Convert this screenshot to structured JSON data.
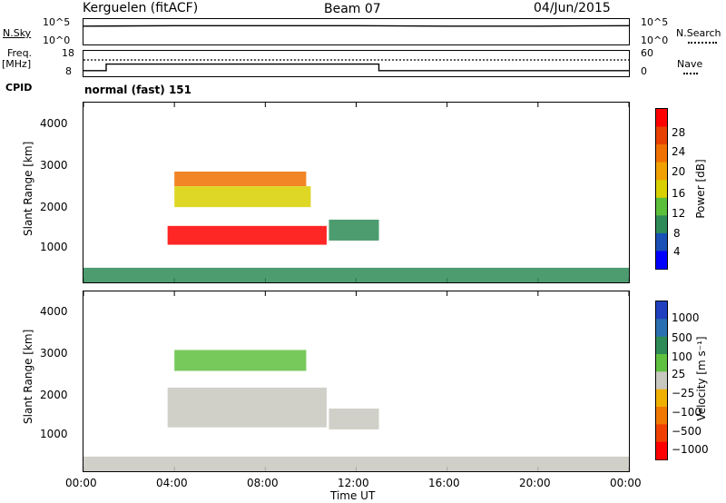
{
  "header": {
    "station": "Kerguelen (fitACF)",
    "beam": "Beam 07",
    "date": "04/Jun/2015"
  },
  "nsky_panel": {
    "left_label": "N.Sky",
    "left_ticks": [
      "10^5",
      "10^0"
    ],
    "right_ticks": [
      "10^5",
      "10^0"
    ],
    "right_label": "N.Search"
  },
  "freq_panel": {
    "left_label_top": "Freq.",
    "left_label_unit": "[MHz]",
    "left_ticks": [
      "18",
      "8"
    ],
    "right_ticks": [
      "60",
      "0"
    ],
    "right_label": "Nave"
  },
  "cpid": {
    "label": "CPID",
    "value": "normal (fast) 151"
  },
  "power_panel": {
    "ylabel": "Slant Range [km]",
    "yticks": [
      "4000",
      "3000",
      "2000",
      "1000"
    ],
    "colorbar_label": "Power [dB]",
    "colorbar_ticks": [
      "28",
      "24",
      "20",
      "16",
      "12",
      "8",
      "4"
    ],
    "colors": [
      "#0000ff",
      "#1a4fb5",
      "#2e8b57",
      "#5bbf3a",
      "#d8d000",
      "#f0a000",
      "#f07000",
      "#e84000",
      "#ff0000"
    ]
  },
  "velocity_panel": {
    "ylabel": "Slant Range [km]",
    "yticks": [
      "4000",
      "3000",
      "2000",
      "1000"
    ],
    "colorbar_label": "Velocity [m s⁻¹]",
    "colorbar_ticks": [
      "1000",
      "500",
      "100",
      "25",
      "−25",
      "−100",
      "−500",
      "−1000"
    ],
    "colors": [
      "#2040c0",
      "#2a70b0",
      "#2e8b57",
      "#60c040",
      "#c8c8c0",
      "#f0b000",
      "#f07800",
      "#f04000",
      "#ff0000"
    ]
  },
  "xaxis": {
    "ticks": [
      "00:00",
      "04:00",
      "08:00",
      "12:00",
      "16:00",
      "20:00",
      "00:00"
    ],
    "label": "Time UT"
  },
  "chart_data": [
    {
      "type": "line",
      "title": "N.Sky",
      "x_unit": "hours UT",
      "x": [
        0,
        4,
        8,
        12,
        16,
        20,
        24
      ],
      "series": [
        {
          "values": [
            3.6,
            3.7,
            3.7,
            3.7,
            3.6,
            3.6,
            3.7
          ]
        }
      ],
      "ylim": [
        0,
        5
      ],
      "log_scale": true
    },
    {
      "type": "line",
      "title": "Freq.",
      "x_unit": "hours UT",
      "x": [
        0,
        1,
        1,
        13,
        13,
        24
      ],
      "series": [
        {
          "values": [
            10.2,
            10.2,
            12.8,
            12.8,
            10.2,
            10.2
          ]
        }
      ],
      "ylim": [
        8,
        18
      ]
    },
    {
      "type": "heatmap",
      "title": "Power [dB]",
      "xlim": [
        0,
        24
      ],
      "ylim": [
        200,
        4500
      ],
      "clim": [
        0,
        32
      ],
      "regions": [
        {
          "t": [
            3.7,
            10.7
          ],
          "range_km": [
            1100,
            1550
          ],
          "value": 30
        },
        {
          "t": [
            4.0,
            9.8
          ],
          "range_km": [
            2500,
            2850
          ],
          "value": 22
        },
        {
          "t": [
            4.0,
            10.0
          ],
          "range_km": [
            2000,
            2500
          ],
          "value": 16
        },
        {
          "t": [
            10.8,
            13.0
          ],
          "range_km": [
            1200,
            1700
          ],
          "value": 8
        },
        {
          "t": [
            0.0,
            24.0
          ],
          "range_km": [
            200,
            550
          ],
          "value": 10
        }
      ]
    },
    {
      "type": "heatmap",
      "title": "Velocity [m s⁻¹]",
      "xlim": [
        0,
        24
      ],
      "ylim": [
        200,
        4500
      ],
      "clim": [
        -1000,
        1000
      ],
      "regions": [
        {
          "t": [
            3.7,
            10.7
          ],
          "range_km": [
            1250,
            2200
          ],
          "value": 0
        },
        {
          "t": [
            4.0,
            9.8
          ],
          "range_km": [
            2600,
            3100
          ],
          "value": -250
        },
        {
          "t": [
            10.8,
            13.0
          ],
          "range_km": [
            1200,
            1700
          ],
          "value": 0
        },
        {
          "t": [
            0.0,
            24.0
          ],
          "range_km": [
            200,
            550
          ],
          "value": 0
        }
      ]
    }
  ]
}
